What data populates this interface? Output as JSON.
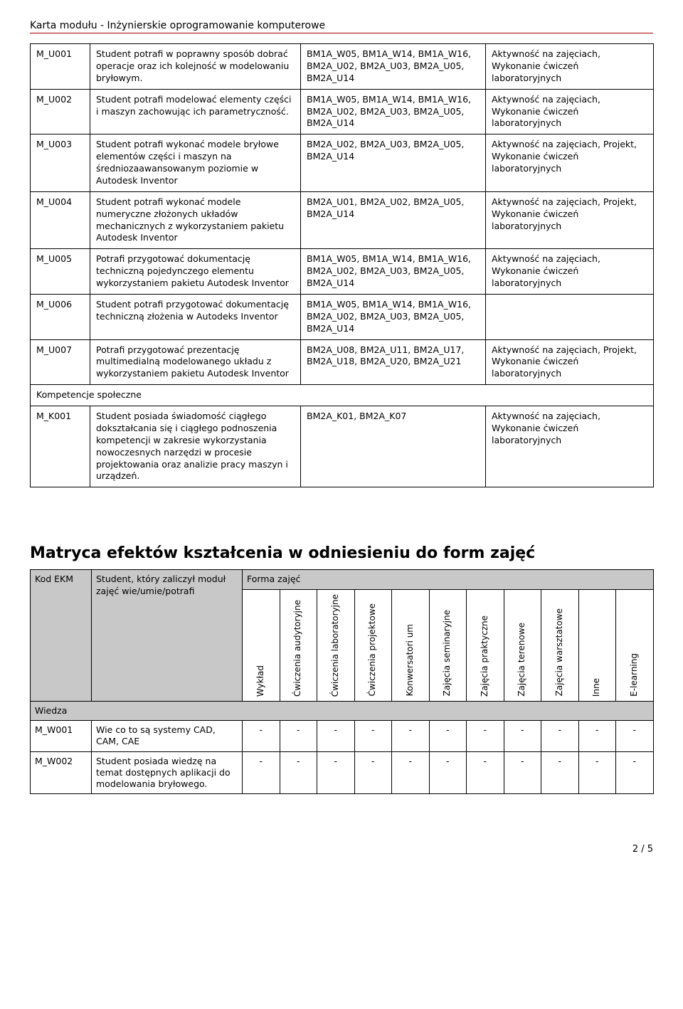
{
  "doc_title": "Karta modułu - Inżynierskie oprogramowanie komputerowe",
  "outcomes": [
    {
      "code": "M_U001",
      "desc": "Student potrafi w poprawny sposób dobrać operacje oraz ich kolejność w modelowaniu bryłowym.",
      "refs": "BM1A_W05, BM1A_W14, BM1A_W16, BM2A_U02, BM2A_U03, BM2A_U05, BM2A_U14",
      "verify": "Aktywność na zajęciach, Wykonanie ćwiczeń laboratoryjnych"
    },
    {
      "code": "M_U002",
      "desc": "Student potrafi modelować elementy części i maszyn zachowując ich parametryczność.",
      "refs": "BM1A_W05, BM1A_W14, BM1A_W16, BM2A_U02, BM2A_U03, BM2A_U05, BM2A_U14",
      "verify": "Aktywność na zajęciach, Wykonanie ćwiczeń laboratoryjnych"
    },
    {
      "code": "M_U003",
      "desc": "Student potrafi wykonać modele bryłowe elementów części i maszyn na średniozaawansowanym poziomie w Autodesk Inventor",
      "refs": "BM2A_U02, BM2A_U03, BM2A_U05, BM2A_U14",
      "verify": "Aktywność na zajęciach, Projekt, Wykonanie ćwiczeń laboratoryjnych"
    },
    {
      "code": "M_U004",
      "desc": "Student potrafi wykonać modele numeryczne złożonych układów mechanicznych z wykorzystaniem pakietu Autodesk Inventor",
      "refs": "BM2A_U01, BM2A_U02, BM2A_U05, BM2A_U14",
      "verify": "Aktywność na zajęciach, Projekt, Wykonanie ćwiczeń laboratoryjnych"
    },
    {
      "code": "M_U005",
      "desc": "Potrafi przygotować dokumentację techniczną pojedynczego elementu wykorzystaniem pakietu Autodesk Inventor",
      "refs": "BM1A_W05, BM1A_W14, BM1A_W16, BM2A_U02, BM2A_U03, BM2A_U05, BM2A_U14",
      "verify": "Aktywność na zajęciach, Wykonanie ćwiczeń laboratoryjnych"
    },
    {
      "code": "M_U006",
      "desc": "Student potrafi przygotować dokumentację techniczną złożenia w Autodeks Inventor",
      "refs": "BM1A_W05, BM1A_W14, BM1A_W16, BM2A_U02, BM2A_U03, BM2A_U05, BM2A_U14",
      "verify": ""
    },
    {
      "code": "M_U007",
      "desc": "Potrafi przygotować prezentację multimedialną modelowanego układu z wykorzystaniem pakietu Autodesk Inventor",
      "refs": "BM2A_U08, BM2A_U11, BM2A_U17, BM2A_U18, BM2A_U20, BM2A_U21",
      "verify": "Aktywność na zajęciach, Projekt, Wykonanie ćwiczeń laboratoryjnych"
    }
  ],
  "social_section": "Kompetencje społeczne",
  "social": [
    {
      "code": "M_K001",
      "desc": "Student posiada świadomość ciągłego dokształcania się i ciągłego podnoszenia kompetencji w zakresie wykorzystania nowoczesnych narzędzi w procesie projektowania oraz analizie pracy maszyn i urządzeń.",
      "refs": "BM2A_K01, BM2A_K07",
      "verify": "Aktywność na zajęciach, Wykonanie ćwiczeń laboratoryjnych"
    }
  ],
  "matrix_title": "Matryca efektów kształcenia w odniesieniu do form zajęć",
  "matrix_header": {
    "code": "Kod EKM",
    "desc": "Student, który zaliczył moduł zajęć wie/umie/potrafi",
    "forms": "Forma zajęć"
  },
  "form_cols": [
    "Wykład",
    "Ćwiczenia audytoryjne",
    "Ćwiczenia laboratoryjne",
    "Ćwiczenia projektowe",
    "Konwersatori um",
    "Zajęcia seminaryjne",
    "Zajęcia praktyczne",
    "Zajęcia terenowe",
    "Zajęcia warsztatowe",
    "Inne",
    "E-learning"
  ],
  "knowledge_label": "Wiedza",
  "matrix_rows": [
    {
      "code": "M_W001",
      "desc": "Wie co to są systemy CAD, CAM, CAE",
      "vals": [
        "-",
        "-",
        "-",
        "-",
        "-",
        "-",
        "-",
        "-",
        "-",
        "-",
        "-"
      ]
    },
    {
      "code": "M_W002",
      "desc": "Student posiada wiedzę na temat dostępnych aplikacji do modelowania bryłowego.",
      "vals": [
        "-",
        "-",
        "-",
        "-",
        "-",
        "-",
        "-",
        "-",
        "-",
        "-",
        "-"
      ]
    }
  ],
  "footer": "2 / 5"
}
